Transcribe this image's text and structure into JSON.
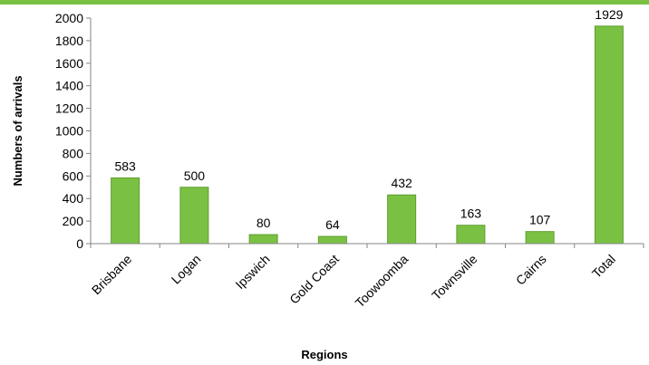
{
  "chart_data": {
    "type": "bar",
    "title": "",
    "xlabel": "Regions",
    "ylabel": "Numbers of arrivals",
    "categories": [
      "Brisbane",
      "Logan",
      "Ipswich",
      "Gold Coast",
      "Toowoomba",
      "Townsville",
      "Cairns",
      "Total"
    ],
    "values": [
      583,
      500,
      80,
      64,
      432,
      163,
      107,
      1929
    ],
    "data_labels": [
      "583",
      "500",
      "80",
      "64",
      "432",
      "163",
      "107",
      "1929"
    ],
    "ylim": [
      0,
      2000
    ],
    "yticks": [
      0,
      200,
      400,
      600,
      800,
      1000,
      1200,
      1400,
      1600,
      1800,
      2000
    ],
    "grid": false,
    "legend": "none",
    "colors": {
      "bar_fill": "#7ac143",
      "bar_edge": "#5f9e2f",
      "top_band": "#7ac143",
      "axis": "#868686"
    }
  }
}
